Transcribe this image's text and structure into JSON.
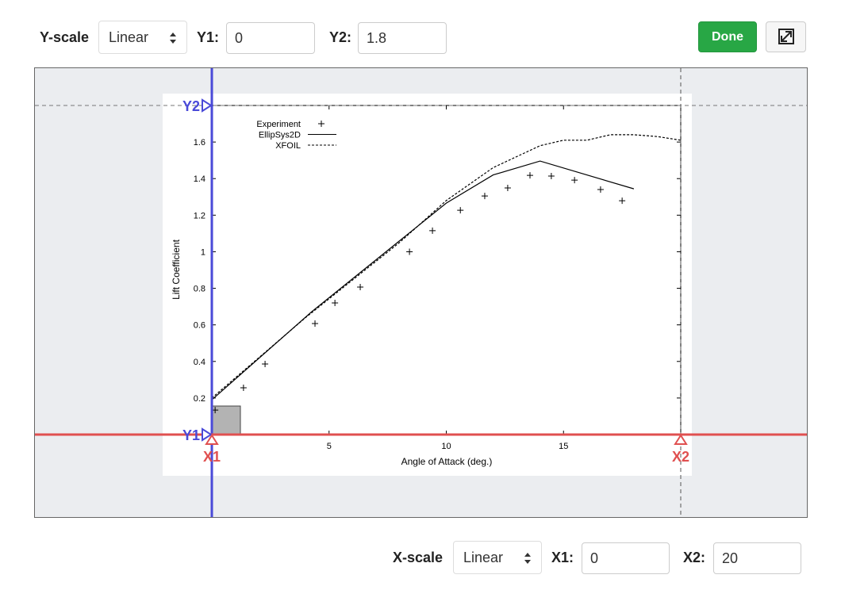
{
  "toolbar": {
    "y_scale_label": "Y-scale",
    "y_scale": "Linear",
    "y1_label": "Y1:",
    "y1": 0,
    "y2_label": "Y2:",
    "y2": 1.8,
    "done": "Done"
  },
  "bottom_bar": {
    "x_scale_label": "X-scale",
    "x_scale": "Linear",
    "x1_label": "X1:",
    "x1": 0,
    "x2_label": "X2:",
    "x2": 20
  },
  "markers": {
    "y2": "Y2",
    "y1": "Y1",
    "x1": "X1",
    "x2": "X2"
  },
  "plot": {
    "xlabel": "Angle of Attack (deg.)",
    "ylabel": "Lift Coefficient",
    "xticks": [
      5,
      10,
      15
    ],
    "yticks": [
      0.2,
      0.4,
      0.6,
      0.8,
      1,
      1.2,
      1.4,
      1.6
    ],
    "series": [
      {
        "name": "Experiment",
        "x": [
          0.14,
          1.35,
          2.27,
          4.4,
          5.25,
          6.33,
          8.43,
          9.41,
          10.6,
          11.64,
          12.62,
          13.57,
          14.48,
          15.47,
          16.58,
          17.5
        ],
        "y": [
          0.134,
          0.256,
          0.386,
          0.607,
          0.72,
          0.807,
          1.0,
          1.115,
          1.227,
          1.305,
          1.349,
          1.418,
          1.414,
          1.392,
          1.34,
          1.279
        ]
      },
      {
        "name": "EllipSys2D",
        "x": [
          0,
          4.26,
          10,
          12,
          14,
          18
        ],
        "y": [
          0.19,
          0.672,
          1.266,
          1.42,
          1.496,
          1.344
        ]
      },
      {
        "name": "XFOIL",
        "x": [
          0,
          4,
          8,
          10,
          12,
          14,
          15,
          16,
          17,
          18,
          19,
          20
        ],
        "y": [
          0.2,
          0.64,
          1.05,
          1.28,
          1.46,
          1.58,
          1.61,
          1.61,
          1.64,
          1.64,
          1.63,
          1.61
        ]
      }
    ]
  }
}
